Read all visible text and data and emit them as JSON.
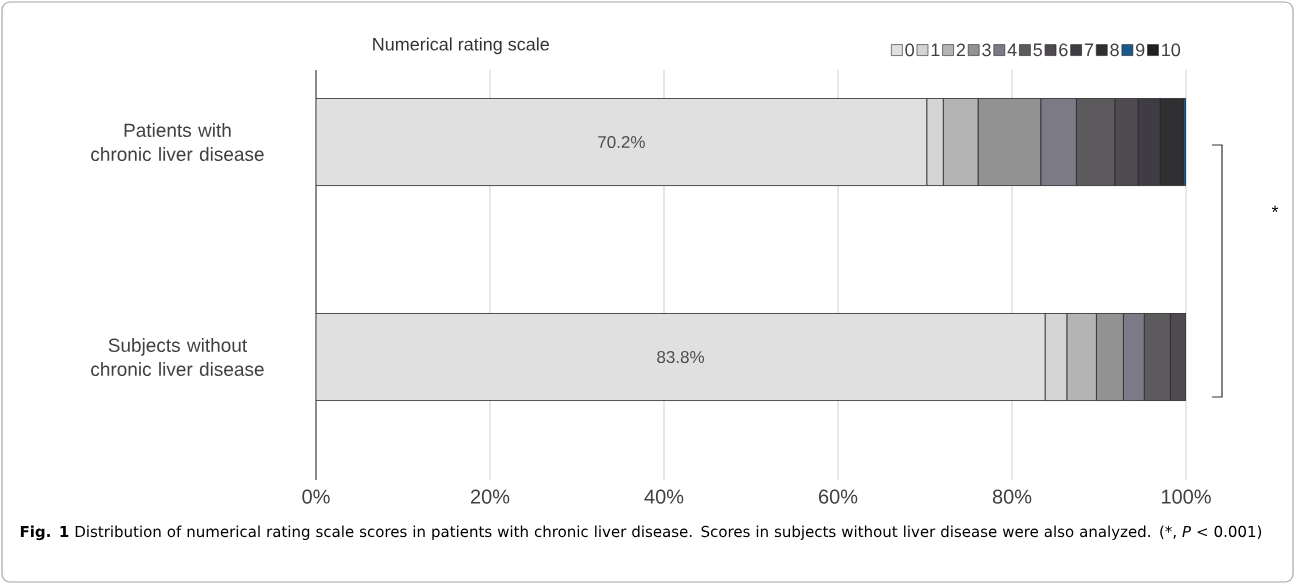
{
  "chart_data": {
    "type": "bar",
    "orientation": "horizontal",
    "stacked": true,
    "legend_title": "Numerical rating scale",
    "legend": "top right",
    "grid": "x",
    "categories": [
      "Patients with chronic liver disease",
      "Subjects without chronic liver disease"
    ],
    "xlim": [
      0,
      100
    ],
    "xticks": [
      {
        "value": 0,
        "label": "0%"
      },
      {
        "value": 20,
        "label": "20%"
      },
      {
        "value": 40,
        "label": "40%"
      },
      {
        "value": 60,
        "label": "60%"
      },
      {
        "value": 80,
        "label": "80%"
      },
      {
        "value": 100,
        "label": "100%"
      }
    ],
    "series": [
      {
        "name": "0",
        "color": "#e0e0e0",
        "values": [
          70.2,
          83.8
        ],
        "value_labels": [
          "70.2%",
          "83.8%"
        ]
      },
      {
        "name": "1",
        "color": "#d4d4d4",
        "values": [
          1.9,
          2.5
        ]
      },
      {
        "name": "2",
        "color": "#b4b4b4",
        "values": [
          4.0,
          3.4
        ]
      },
      {
        "name": "3",
        "color": "#929292",
        "values": [
          7.2,
          3.1
        ]
      },
      {
        "name": "4",
        "color": "#7c7a86",
        "values": [
          4.1,
          2.4
        ]
      },
      {
        "name": "5",
        "color": "#5c5a5c",
        "values": [
          4.4,
          3.0
        ]
      },
      {
        "name": "6",
        "color": "#4e4a50",
        "values": [
          2.7,
          1.8
        ]
      },
      {
        "name": "7",
        "color": "#403c44",
        "values": [
          2.5,
          0
        ]
      },
      {
        "name": "8",
        "color": "#303032",
        "values": [
          2.7,
          0
        ]
      },
      {
        "name": "9",
        "color": "#1a5a8a",
        "values": [
          0.3,
          0
        ]
      },
      {
        "name": "10",
        "color": "#202020",
        "values": [
          0,
          0
        ]
      }
    ],
    "annotations": [
      "*",
      "**Fig. 1** Distribution of numerical rating scale scores in patients with chronic liver disease. Scores in subjects without liver disease were also analyzed. (*, *P* < 0.001)"
    ]
  }
}
